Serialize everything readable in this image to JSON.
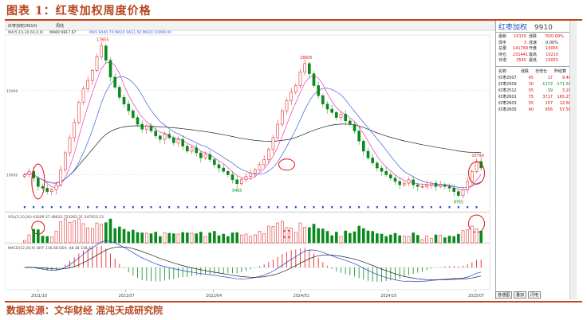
{
  "figure": {
    "title": "图表 1：红枣加权周度价格",
    "source": "数据来源：文华财经 混沌天成研究院"
  },
  "toolbar": {
    "instrument": "红枣加权(9910)",
    "period": "周线",
    "ma_text": "MA(5,10,20,60,0,0)",
    "ma60_label": "MA60 9817.67",
    "ma_values": "MA5 9440.70  MA10 9611.50  MA20 10099.00"
  },
  "colors": {
    "up": "#e01010",
    "down": "#0a8a1c",
    "ma5": "#e838b8",
    "ma10": "#3a5fe0",
    "ma60": "#222222",
    "dif": "#1f3fd0",
    "dea": "#222222",
    "highlight": "#e01010",
    "marker": "#1f3fd0"
  },
  "chart_data": {
    "type": "candlestick",
    "title": "红枣加权周度价格",
    "x_ticks": [
      "2021/10",
      "2021/07",
      "2022/04",
      "2024/01",
      "2024/10",
      "2025/07"
    ],
    "y_ticks": [
      15000,
      10000
    ],
    "annotations": [
      {
        "label": "17655",
        "kind": "high"
      },
      {
        "label": "9465",
        "kind": "low"
      },
      {
        "label": "16605",
        "kind": "high"
      },
      {
        "label": "8765",
        "kind": "low"
      },
      {
        "label": "10790",
        "kind": "high"
      }
    ],
    "close_series": [
      10000,
      10200,
      9800,
      9300,
      9200,
      9000,
      9100,
      9400,
      10300,
      11300,
      12200,
      13100,
      14300,
      15100,
      15600,
      16200,
      17000,
      17655,
      16800,
      15800,
      15200,
      14600,
      14200,
      13800,
      13400,
      13000,
      12700,
      12900,
      12600,
      12300,
      12100,
      12400,
      12200,
      11900,
      12100,
      11700,
      11400,
      11600,
      11300,
      11000,
      11200,
      10900,
      10600,
      10400,
      10200,
      10000,
      9700,
      9465,
      9700,
      9900,
      10100,
      10300,
      10600,
      10900,
      11500,
      12200,
      13000,
      13800,
      14400,
      14900,
      15300,
      16100,
      16605,
      16000,
      15300,
      14700,
      14200,
      13900,
      13700,
      13400,
      13600,
      13200,
      13000,
      12600,
      12000,
      11400,
      11000,
      10700,
      10400,
      10200,
      10000,
      9800,
      9600,
      9400,
      9500,
      9700,
      9400,
      9300,
      9300,
      9400,
      9500,
      9300,
      9400,
      9300,
      9200,
      9000,
      8765,
      9100,
      9600,
      10200,
      10790,
      10400
    ],
    "ma5_values": [
      9440.7
    ],
    "ma10_values": [
      9611.5
    ],
    "ma60_values": [
      9817.67
    ],
    "volume_label": "VOL(5,10,20) 41609.37  48612  723262.31  547653.13",
    "macd_label": "MACD(12,26,9)  DIFF 116.68  DEA -48.38  318.47"
  },
  "sidebar": {
    "title": "红枣加权",
    "code": "9910",
    "quote": [
      {
        "k1": "最新",
        "v1": "10155",
        "k2": "涨跌",
        "v2": "70/0.69%"
      },
      {
        "k1": "现手",
        "v1": "3",
        "k2": "涨速",
        "v2": "0.00%"
      },
      {
        "k1": "总量",
        "v1": "141769",
        "k2": "开盘",
        "v2": "10065"
      },
      {
        "k1": "持仓",
        "v1": "231441",
        "k2": "最高",
        "v2": "10210"
      },
      {
        "k1": "日增",
        "v1": "3545",
        "k2": "最低",
        "v2": "10055"
      }
    ],
    "contracts_header": [
      "名称",
      "涨跌",
      "日增仓",
      "昨结算"
    ],
    "contracts": [
      {
        "name": "红枣2507",
        "chg": "45",
        "oi": "17",
        "val": "9.46"
      },
      {
        "name": "红枣2509",
        "chg": "30",
        "oi": "-1172",
        "val": "-171.50"
      },
      {
        "name": "红枣2512",
        "chg": "55",
        "oi": "-39",
        "val": "3.20"
      },
      {
        "name": "红枣2601",
        "chg": "75",
        "oi": "3717",
        "val": "165.25"
      },
      {
        "name": "红枣2603",
        "chg": "55",
        "oi": "157",
        "val": "12.60"
      },
      {
        "name": "红枣2605",
        "chg": "40",
        "oi": "956",
        "val": "57.56"
      }
    ],
    "tabs": [
      "普通图",
      "叠加",
      "闪电"
    ]
  }
}
